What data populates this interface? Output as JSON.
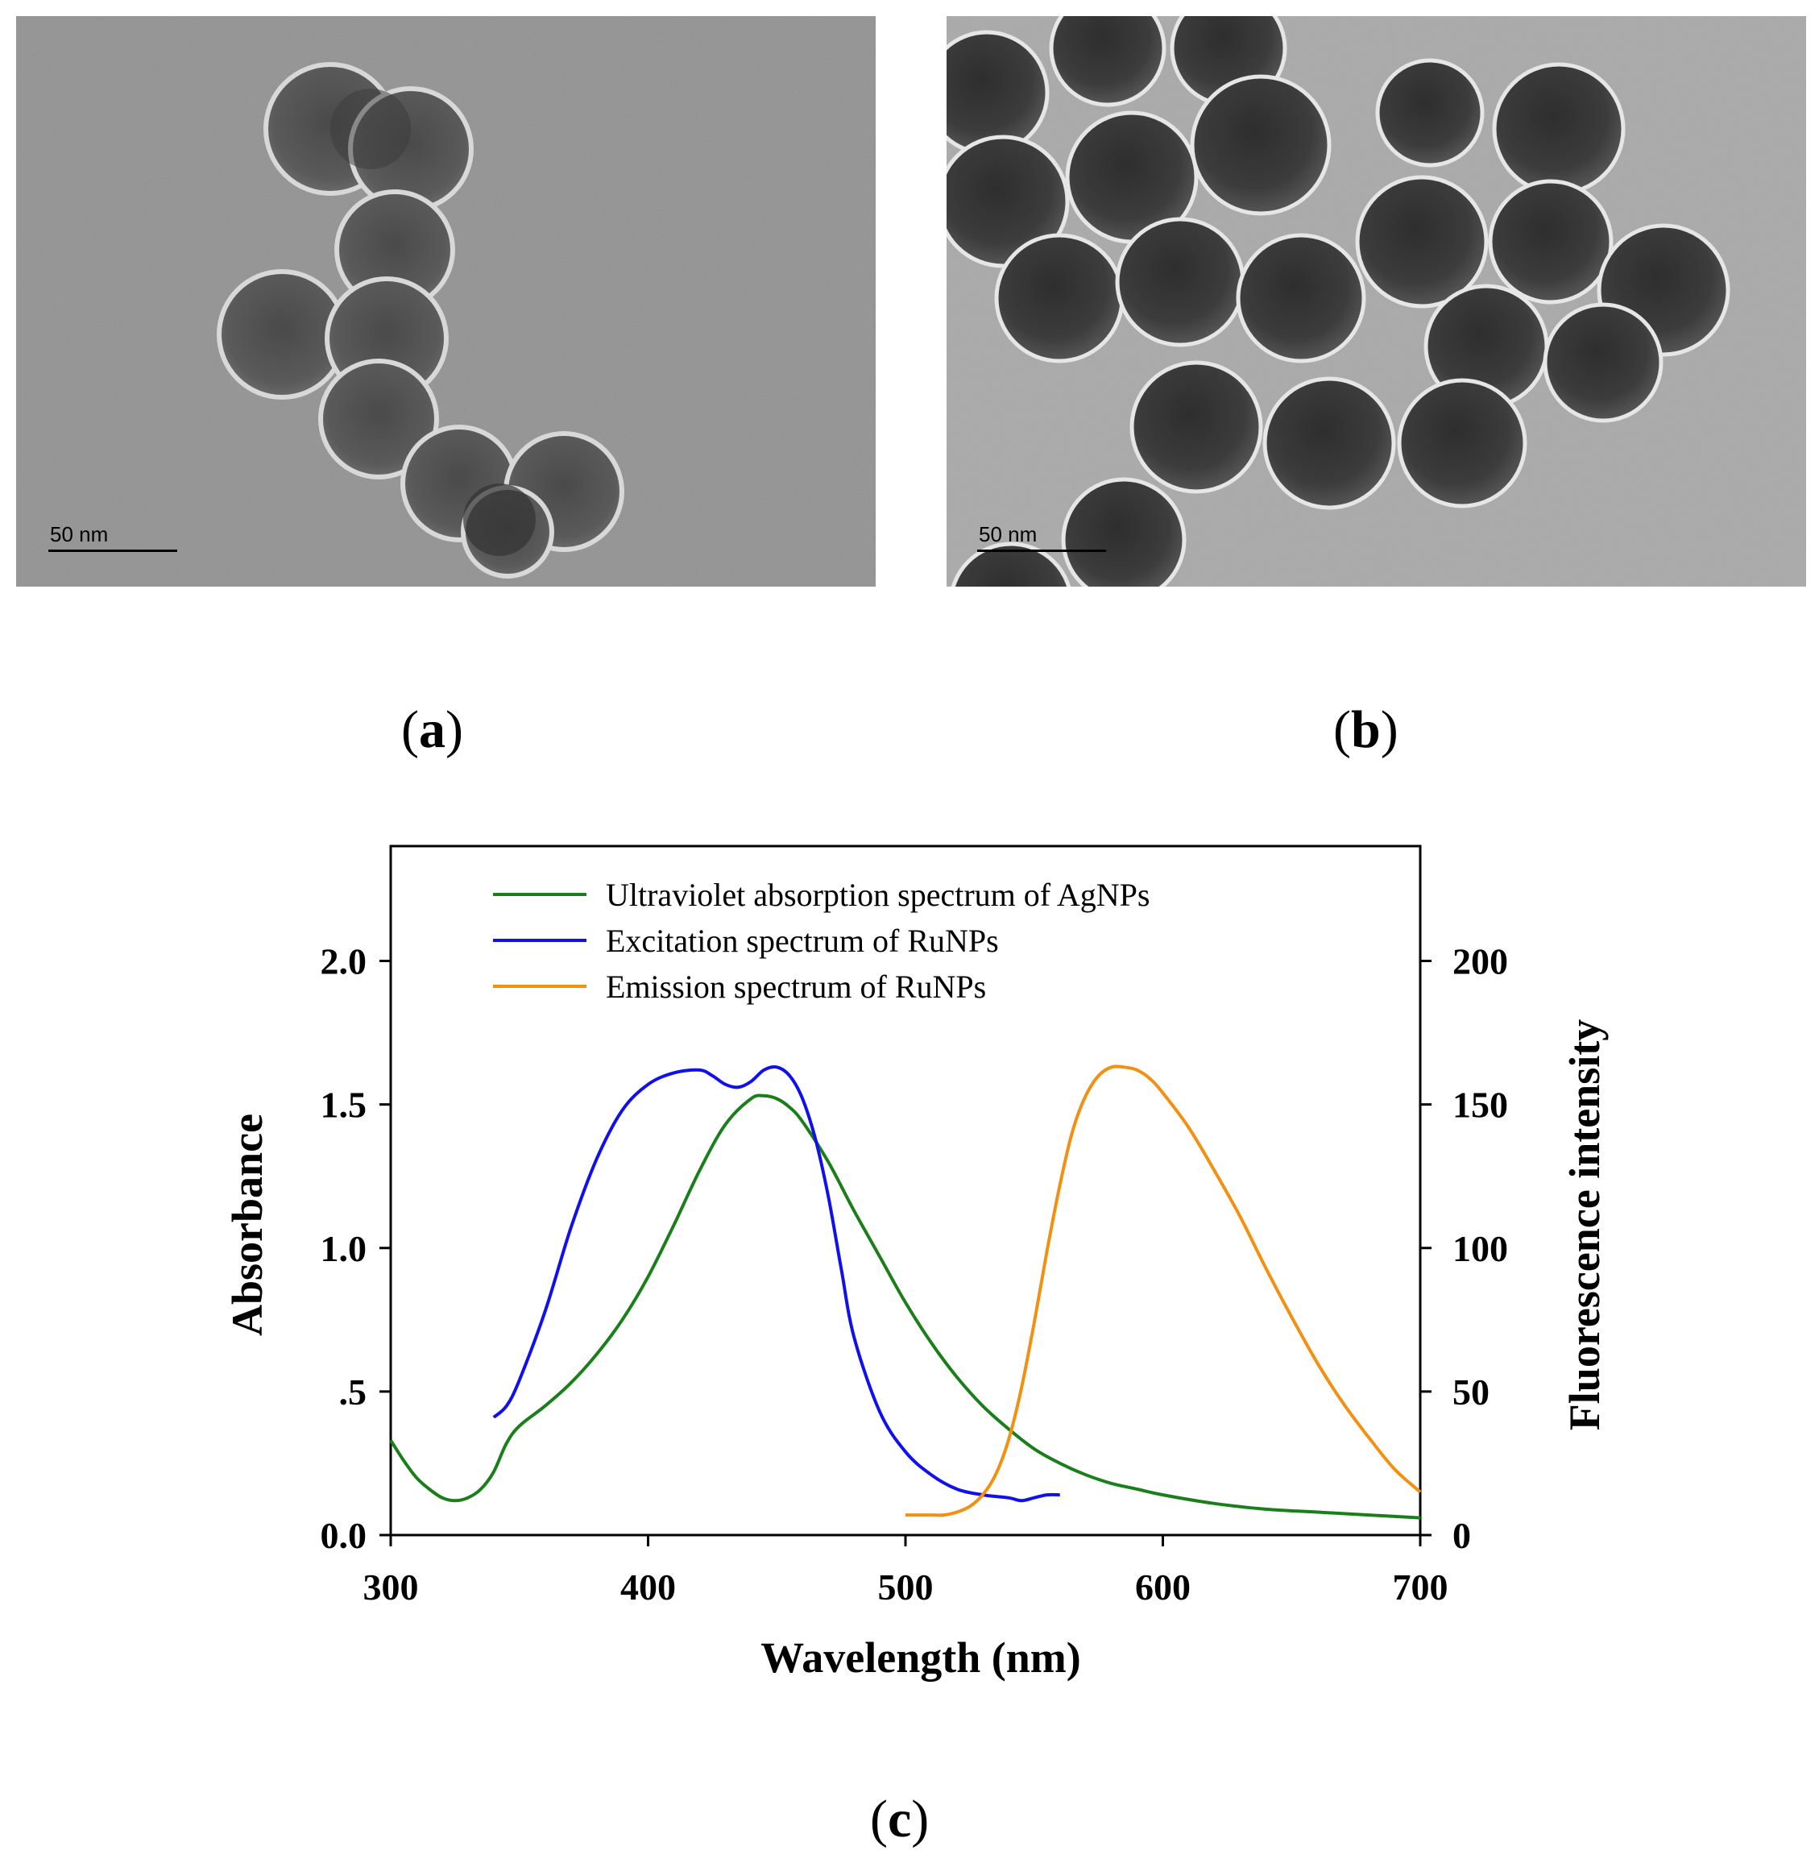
{
  "panels": {
    "a": {
      "label": "a",
      "scale_bar": "50 nm"
    },
    "b": {
      "label": "b",
      "scale_bar": "50 nm"
    },
    "c": {
      "label": "c"
    }
  },
  "colors": {
    "green": "#1a7f1a",
    "blue": "#1010ee",
    "orange": "#f39012"
  },
  "chart_data": {
    "type": "line",
    "title": "",
    "xlabel": "Wavelength (nm)",
    "ylabel": "Absorbance",
    "y2label": "Fluorescence intensity",
    "xlim": [
      300,
      700
    ],
    "ylim": [
      0,
      2.4
    ],
    "y2lim": [
      0,
      240
    ],
    "xticks": [
      300,
      400,
      500,
      600,
      700
    ],
    "xtick_labels": [
      "300",
      "400",
      "500",
      "600",
      "700"
    ],
    "yticks": [
      0,
      0.5,
      1.0,
      1.5,
      2.0
    ],
    "ytick_labels": [
      "0.0",
      ".5",
      "1.0",
      "1.5",
      "2.0"
    ],
    "y2ticks": [
      0,
      50,
      100,
      150,
      200
    ],
    "y2tick_labels": [
      "0",
      "50",
      "100",
      "150",
      "200"
    ],
    "legend_position": "top-left",
    "grid": false,
    "series": [
      {
        "name": "Ultraviolet absorption spectrum of AgNPs",
        "axis": "left",
        "color": "#1a7f1a",
        "x": [
          300,
          305,
          310,
          315,
          320,
          325,
          330,
          335,
          340,
          345,
          350,
          360,
          370,
          380,
          390,
          400,
          410,
          420,
          430,
          440,
          445,
          450,
          455,
          460,
          470,
          480,
          490,
          500,
          510,
          520,
          530,
          540,
          550,
          560,
          570,
          580,
          590,
          600,
          620,
          640,
          660,
          680,
          700
        ],
        "y": [
          0.33,
          0.26,
          0.2,
          0.16,
          0.13,
          0.12,
          0.13,
          0.16,
          0.22,
          0.32,
          0.38,
          0.45,
          0.53,
          0.63,
          0.75,
          0.9,
          1.08,
          1.27,
          1.43,
          1.52,
          1.53,
          1.52,
          1.49,
          1.44,
          1.3,
          1.13,
          0.97,
          0.81,
          0.67,
          0.55,
          0.45,
          0.37,
          0.3,
          0.25,
          0.21,
          0.18,
          0.16,
          0.14,
          0.11,
          0.09,
          0.08,
          0.07,
          0.06
        ]
      },
      {
        "name": "Excitation spectrum of RuNPs",
        "axis": "right",
        "color": "#1010ee",
        "x": [
          340,
          345,
          350,
          360,
          370,
          380,
          390,
          400,
          410,
          420,
          425,
          430,
          435,
          440,
          445,
          450,
          455,
          460,
          465,
          470,
          475,
          480,
          490,
          500,
          510,
          520,
          530,
          540,
          545,
          550,
          555,
          560
        ],
        "y": [
          41,
          45,
          54,
          78,
          107,
          131,
          148,
          157,
          161,
          162,
          160,
          157,
          156,
          158,
          162,
          163,
          160,
          152,
          138,
          118,
          93,
          69,
          43,
          29,
          21,
          16,
          14,
          13,
          12,
          13,
          14,
          14
        ]
      },
      {
        "name": "Emission spectrum of RuNPs",
        "axis": "right",
        "color": "#f39012",
        "x": [
          500,
          505,
          510,
          515,
          520,
          525,
          530,
          535,
          540,
          545,
          550,
          555,
          560,
          565,
          570,
          575,
          580,
          585,
          590,
          595,
          600,
          610,
          620,
          630,
          640,
          650,
          660,
          670,
          680,
          690,
          700
        ],
        "y": [
          7,
          7,
          7,
          7,
          8,
          10,
          14,
          21,
          33,
          51,
          74,
          99,
          122,
          141,
          153,
          160,
          163,
          163,
          162,
          159,
          154,
          142,
          127,
          111,
          93,
          76,
          60,
          46,
          34,
          23,
          15
        ]
      }
    ]
  }
}
